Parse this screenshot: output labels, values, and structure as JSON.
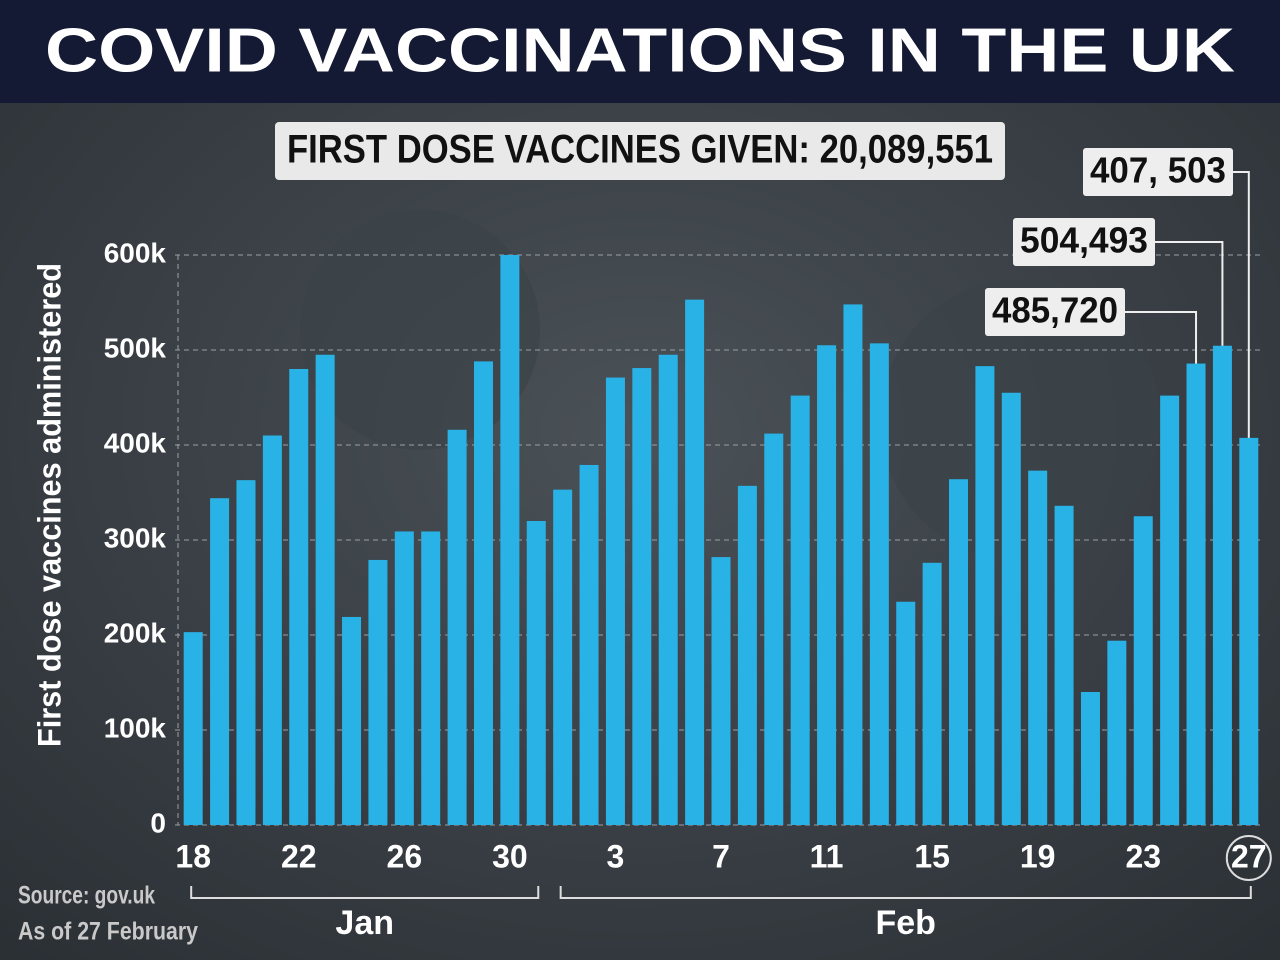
{
  "chart_data": {
    "type": "bar",
    "title": "COVID VACCINATIONS IN THE UK",
    "subtitle": "FIRST DOSE VACCINES GIVEN: 20,089,551",
    "y_label": "First dose vaccines administered",
    "categories": [
      "18",
      null,
      null,
      null,
      "22",
      null,
      null,
      null,
      "26",
      null,
      null,
      null,
      "30",
      null,
      null,
      null,
      "3",
      null,
      null,
      null,
      "7",
      null,
      null,
      null,
      "11",
      null,
      null,
      null,
      "15",
      null,
      null,
      null,
      "19",
      null,
      null,
      null,
      "23",
      null,
      null,
      null,
      "27"
    ],
    "month_labels": [
      "Jan",
      "Feb"
    ],
    "values": [
      203000,
      344000,
      363000,
      410000,
      480000,
      495000,
      219000,
      279000,
      309000,
      309000,
      416000,
      488000,
      600000,
      320000,
      353000,
      379000,
      471000,
      481000,
      495000,
      553000,
      282000,
      357000,
      412000,
      452000,
      505000,
      548000,
      507000,
      235000,
      276000,
      364000,
      483000,
      455000,
      373000,
      336000,
      140000,
      194000,
      325000,
      452000,
      485720,
      504493,
      407503
    ],
    "value_labels": [
      null,
      null,
      null,
      null,
      null,
      null,
      null,
      null,
      null,
      null,
      null,
      null,
      null,
      null,
      null,
      null,
      null,
      null,
      null,
      null,
      null,
      null,
      null,
      null,
      null,
      null,
      null,
      null,
      null,
      null,
      null,
      null,
      null,
      null,
      null,
      null,
      null,
      null,
      "485,720",
      "504,493",
      "407, 503"
    ],
    "color": "#29b2e6",
    "ylim": [
      0,
      600000
    ],
    "yticks": [
      0,
      {
        "value": 100000,
        "label": "100k"
      },
      {
        "value": 200000,
        "label": "200k"
      },
      {
        "value": 300000,
        "label": "300k"
      },
      {
        "value": 400000,
        "label": "400k"
      },
      {
        "value": 500000,
        "label": "500k"
      },
      {
        "value": 600000,
        "label": "600k"
      }
    ],
    "grid": true,
    "source": "Source: gov.uk",
    "note": "As of 27 February"
  }
}
